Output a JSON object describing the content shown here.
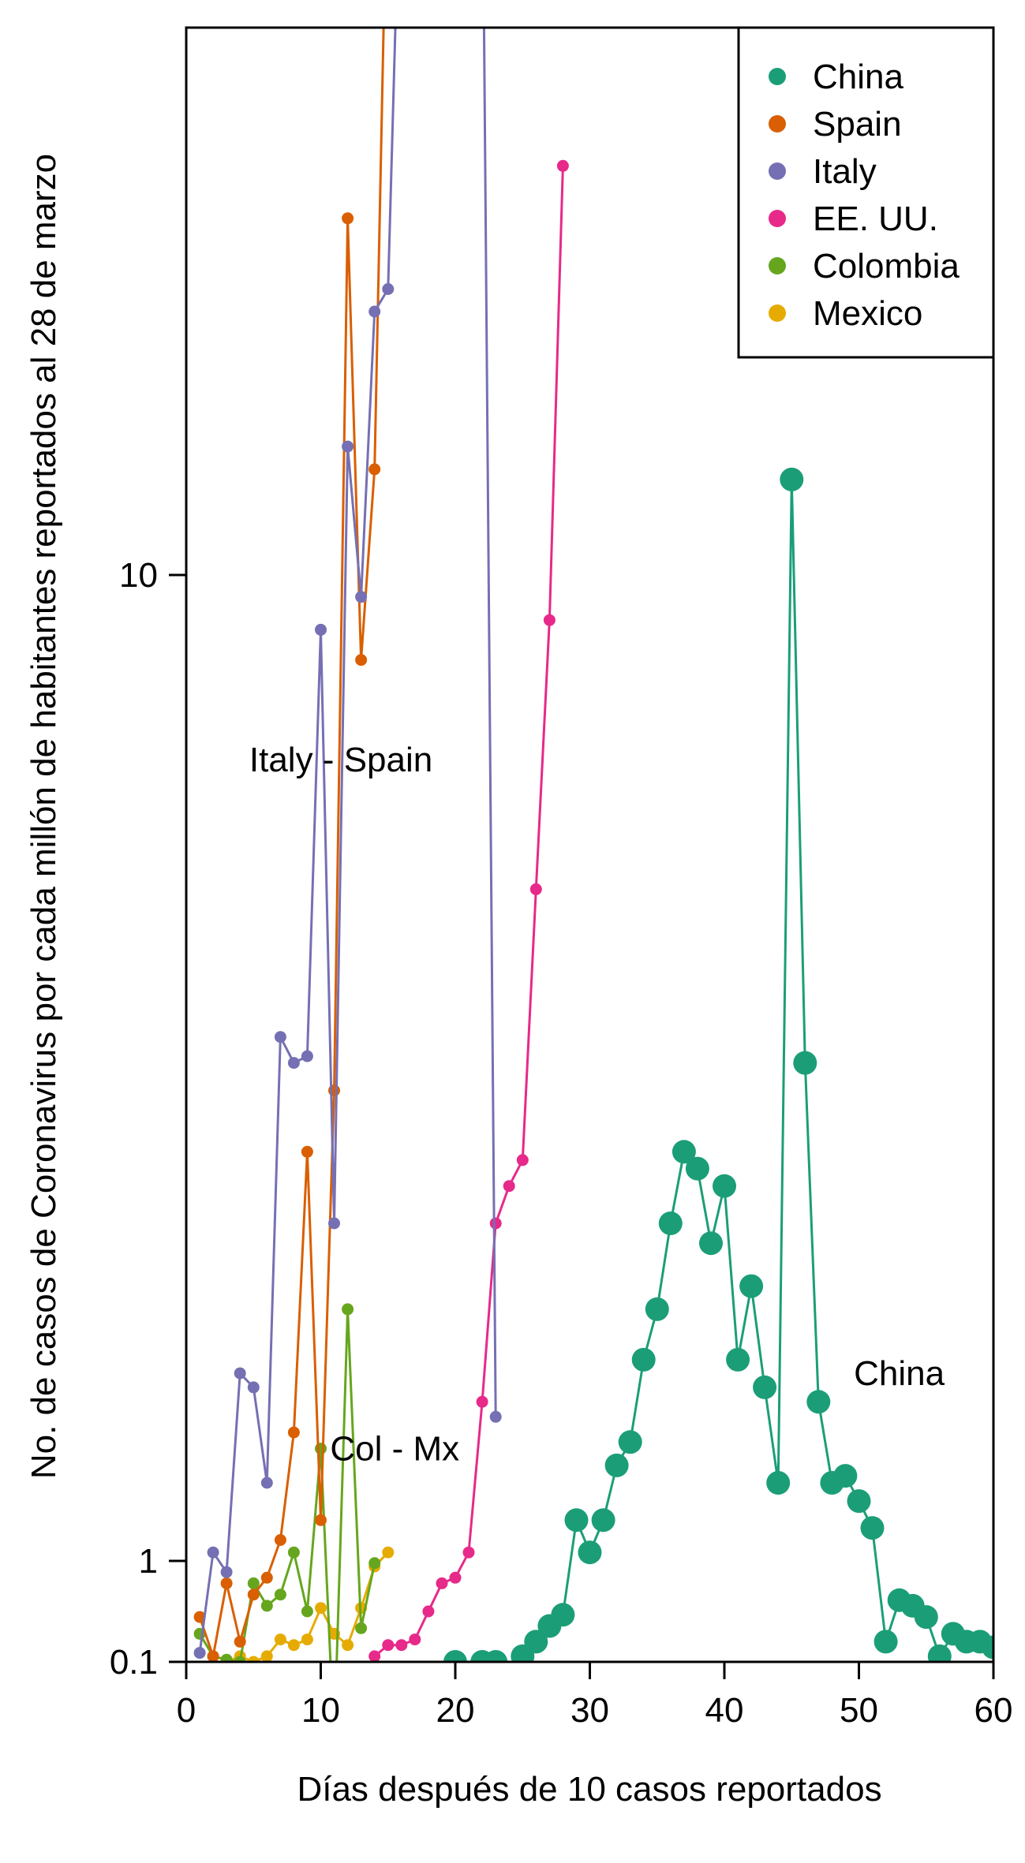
{
  "chart_data": {
    "type": "line",
    "xlabel": "Días después de 10 casos reportados",
    "ylabel": "No. de casos de Coronavirus por cada millón de habitantes reportados al 28 de marzo",
    "xlim": [
      0,
      60
    ],
    "y_scale": "log1p-like",
    "ylim_visible_ticks": [
      0.1,
      1,
      10
    ],
    "x_ticks": [
      0,
      10,
      20,
      30,
      40,
      50,
      60
    ],
    "x_tick_labels": [
      "0",
      "10",
      "20",
      "30",
      "40",
      "50",
      "60"
    ],
    "y_ticks": [
      0.1,
      1,
      10
    ],
    "y_tick_labels": [
      "0.1",
      "1",
      "10"
    ],
    "legend_position": "top-right",
    "grid": false,
    "series": [
      {
        "name": "China",
        "color": "#1b9e77",
        "marker_size": "large",
        "x": [
          1,
          2,
          3,
          4,
          5,
          6,
          7,
          8,
          9,
          10,
          11,
          12,
          13,
          14,
          15,
          16,
          17,
          18,
          19,
          20,
          21,
          22,
          23,
          24,
          25,
          26,
          27,
          28,
          29,
          30,
          31,
          32,
          33,
          34,
          35,
          36,
          37,
          38,
          39,
          40,
          41,
          42,
          43,
          44,
          45,
          46,
          47,
          48,
          49,
          50,
          51,
          52,
          53,
          54,
          55,
          56,
          57,
          58,
          59,
          60
        ],
        "y": [
          0.02,
          0.02,
          0.02,
          0.02,
          0.02,
          0.02,
          0.02,
          0.02,
          0.02,
          0.02,
          0.02,
          0.02,
          0.02,
          0.02,
          0.02,
          0.02,
          0.02,
          0.02,
          0.05,
          0.1,
          0.05,
          0.1,
          0.1,
          0.05,
          0.15,
          0.28,
          0.42,
          0.52,
          1.1,
          1.02,
          1.1,
          1.25,
          1.32,
          1.6,
          1.8,
          2.2,
          2.6,
          2.5,
          2.1,
          2.4,
          1.6,
          1.9,
          1.5,
          1.2,
          12.5,
          3.2,
          1.45,
          1.2,
          1.22,
          1.15,
          1.08,
          0.28,
          0.65,
          0.6,
          0.5,
          0.15,
          0.35,
          0.28,
          0.28,
          0.23
        ]
      },
      {
        "name": "Spain",
        "color": "#d95f02",
        "marker_size": "small",
        "x": [
          1,
          2,
          3,
          4,
          5,
          6,
          7,
          8,
          9,
          10,
          11,
          12,
          13,
          14,
          15
        ],
        "y": [
          0.5,
          0.15,
          0.8,
          0.28,
          0.7,
          0.85,
          1.05,
          1.35,
          2.6,
          1.1,
          3.0,
          23,
          8.2,
          12.8,
          60
        ]
      },
      {
        "name": "Italy",
        "color": "#7570b3",
        "marker_size": "small",
        "x": [
          1,
          2,
          3,
          4,
          5,
          6,
          7,
          8,
          9,
          10,
          11,
          12,
          13,
          14,
          15,
          16,
          17,
          18,
          19,
          20,
          21,
          22,
          23
        ],
        "y": [
          0.18,
          1.02,
          0.9,
          1.55,
          1.5,
          1.2,
          3.4,
          3.2,
          3.25,
          8.8,
          2.2,
          13.5,
          9.5,
          18.5,
          19.5,
          60,
          60,
          60,
          60,
          60,
          60,
          60,
          1.4
        ]
      },
      {
        "name": "EE. UU.",
        "color": "#e7298a",
        "marker_size": "small",
        "x": [
          1,
          2,
          3,
          4,
          5,
          6,
          7,
          8,
          9,
          10,
          11,
          12,
          13,
          14,
          15,
          16,
          17,
          18,
          19,
          20,
          21,
          22,
          23,
          24,
          25,
          26,
          27,
          28
        ],
        "y": [
          0.02,
          0.02,
          0.02,
          0.02,
          0.02,
          0.02,
          0.02,
          0.02,
          0.02,
          0.02,
          0.02,
          0.02,
          0.03,
          0.15,
          0.25,
          0.25,
          0.3,
          0.55,
          0.8,
          0.85,
          1.02,
          1.45,
          2.2,
          2.4,
          2.55,
          4.8,
          9.0,
          26
        ]
      },
      {
        "name": "Colombia",
        "color": "#66a61e",
        "marker_size": "small",
        "x": [
          1,
          2,
          3,
          4,
          5,
          6,
          7,
          8,
          9,
          10,
          11,
          12,
          13,
          14
        ],
        "y": [
          0.35,
          0.15,
          0.12,
          0.1,
          0.8,
          0.6,
          0.7,
          1.02,
          0.55,
          1.3,
          0.02,
          1.8,
          0.4,
          0.98
        ]
      },
      {
        "name": "Mexico",
        "color": "#e6ab02",
        "marker_size": "small",
        "x": [
          1,
          2,
          3,
          4,
          5,
          6,
          7,
          8,
          9,
          10,
          11,
          12,
          13,
          14,
          15
        ],
        "y": [
          0.02,
          0.05,
          0.1,
          0.15,
          0.1,
          0.15,
          0.3,
          0.25,
          0.3,
          0.58,
          0.35,
          0.25,
          0.58,
          0.95,
          1.02
        ]
      }
    ],
    "annotations": [
      {
        "text": "Italy - Spain",
        "x": 11.5,
        "y": 6.5
      },
      {
        "text": "Col - Mx",
        "x": 15.5,
        "y": 1.3
      },
      {
        "text": "China",
        "x": 53,
        "y": 1.55
      }
    ]
  }
}
